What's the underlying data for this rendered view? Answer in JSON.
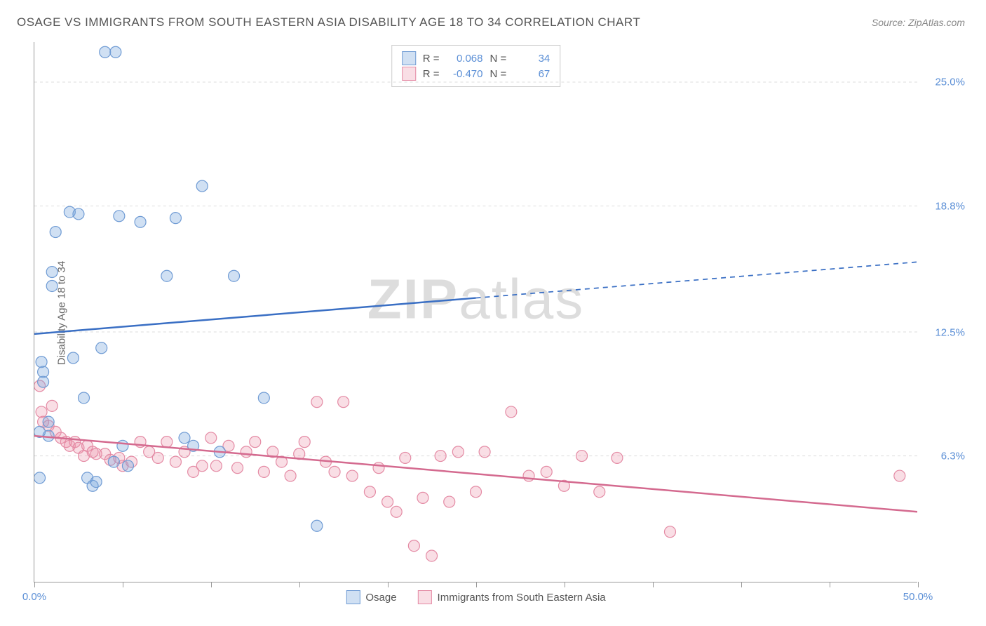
{
  "title": "OSAGE VS IMMIGRANTS FROM SOUTH EASTERN ASIA DISABILITY AGE 18 TO 34 CORRELATION CHART",
  "source": "Source: ZipAtlas.com",
  "watermark": "ZIPatlas",
  "ylabel": "Disability Age 18 to 34",
  "chart": {
    "type": "scatter",
    "xlim": [
      0,
      50
    ],
    "ylim": [
      0,
      27
    ],
    "background_color": "#ffffff",
    "grid_color": "#dddddd",
    "axis_color": "#999999",
    "yticks": [
      {
        "value": 6.3,
        "label": "6.3%"
      },
      {
        "value": 12.5,
        "label": "12.5%"
      },
      {
        "value": 18.8,
        "label": "18.8%"
      },
      {
        "value": 25.0,
        "label": "25.0%"
      }
    ],
    "xticks": [
      0,
      5,
      10,
      15,
      20,
      25,
      30,
      35,
      40,
      45,
      50
    ],
    "xlabels": [
      {
        "value": 0,
        "label": "0.0%"
      },
      {
        "value": 50,
        "label": "50.0%"
      }
    ],
    "tick_label_color": "#5b8fd6",
    "label_fontsize": 15,
    "title_fontsize": 17,
    "marker_radius": 8,
    "marker_stroke_width": 1.2,
    "line_width": 2.5
  },
  "series": {
    "osage": {
      "label": "Osage",
      "fill_color": "rgba(120, 165, 220, 0.35)",
      "stroke_color": "#6f9bd4",
      "line_color": "#3a6fc4",
      "R": "0.068",
      "N": "34",
      "trend": {
        "x1": 0,
        "y1": 12.4,
        "x2": 50,
        "y2": 16.0,
        "solid_until_x": 25
      },
      "points": [
        [
          0.4,
          11.0
        ],
        [
          0.5,
          10.5
        ],
        [
          0.5,
          10.0
        ],
        [
          0.8,
          8.0
        ],
        [
          0.8,
          7.3
        ],
        [
          1.0,
          15.5
        ],
        [
          1.0,
          14.8
        ],
        [
          1.2,
          17.5
        ],
        [
          2.0,
          18.5
        ],
        [
          2.2,
          11.2
        ],
        [
          2.5,
          18.4
        ],
        [
          2.8,
          9.2
        ],
        [
          3.0,
          5.2
        ],
        [
          3.3,
          4.8
        ],
        [
          3.5,
          5.0
        ],
        [
          3.8,
          11.7
        ],
        [
          4.0,
          26.5
        ],
        [
          4.6,
          26.5
        ],
        [
          4.5,
          6.0
        ],
        [
          4.8,
          18.3
        ],
        [
          5.0,
          6.8
        ],
        [
          5.3,
          5.8
        ],
        [
          6.0,
          18.0
        ],
        [
          7.5,
          15.3
        ],
        [
          8.0,
          18.2
        ],
        [
          8.5,
          7.2
        ],
        [
          9.0,
          6.8
        ],
        [
          9.5,
          19.8
        ],
        [
          10.5,
          6.5
        ],
        [
          11.3,
          15.3
        ],
        [
          13.0,
          9.2
        ],
        [
          16.0,
          2.8
        ],
        [
          0.3,
          7.5
        ],
        [
          0.3,
          5.2
        ]
      ]
    },
    "immigrants": {
      "label": "Immigrants from South Eastern Asia",
      "fill_color": "rgba(235, 145, 170, 0.3)",
      "stroke_color": "#e48aa4",
      "line_color": "#d46a8f",
      "R": "-0.470",
      "N": "67",
      "trend": {
        "x1": 0,
        "y1": 7.3,
        "x2": 50,
        "y2": 3.5,
        "solid_until_x": 50
      },
      "points": [
        [
          0.3,
          9.8
        ],
        [
          0.4,
          8.5
        ],
        [
          0.5,
          8.0
        ],
        [
          0.8,
          7.8
        ],
        [
          1.0,
          8.8
        ],
        [
          1.2,
          7.5
        ],
        [
          1.5,
          7.2
        ],
        [
          1.8,
          7.0
        ],
        [
          2.0,
          6.8
        ],
        [
          2.3,
          7.0
        ],
        [
          2.5,
          6.7
        ],
        [
          2.8,
          6.3
        ],
        [
          3.0,
          6.8
        ],
        [
          3.3,
          6.5
        ],
        [
          3.5,
          6.4
        ],
        [
          4.0,
          6.4
        ],
        [
          4.3,
          6.1
        ],
        [
          4.8,
          6.2
        ],
        [
          5.0,
          5.8
        ],
        [
          5.5,
          6.0
        ],
        [
          6.0,
          7.0
        ],
        [
          6.5,
          6.5
        ],
        [
          7.0,
          6.2
        ],
        [
          7.5,
          7.0
        ],
        [
          8.0,
          6.0
        ],
        [
          8.5,
          6.5
        ],
        [
          9.0,
          5.5
        ],
        [
          9.5,
          5.8
        ],
        [
          10.0,
          7.2
        ],
        [
          10.3,
          5.8
        ],
        [
          11.0,
          6.8
        ],
        [
          11.5,
          5.7
        ],
        [
          12.0,
          6.5
        ],
        [
          12.5,
          7.0
        ],
        [
          13.0,
          5.5
        ],
        [
          13.5,
          6.5
        ],
        [
          14.0,
          6.0
        ],
        [
          14.5,
          5.3
        ],
        [
          15.0,
          6.4
        ],
        [
          15.3,
          7.0
        ],
        [
          16.0,
          9.0
        ],
        [
          16.5,
          6.0
        ],
        [
          17.0,
          5.5
        ],
        [
          17.5,
          9.0
        ],
        [
          18.0,
          5.3
        ],
        [
          19.0,
          4.5
        ],
        [
          19.5,
          5.7
        ],
        [
          20.0,
          4.0
        ],
        [
          20.5,
          3.5
        ],
        [
          21.0,
          6.2
        ],
        [
          21.5,
          1.8
        ],
        [
          22.0,
          4.2
        ],
        [
          22.5,
          1.3
        ],
        [
          23.0,
          6.3
        ],
        [
          23.5,
          4.0
        ],
        [
          24.0,
          6.5
        ],
        [
          25.0,
          4.5
        ],
        [
          25.5,
          6.5
        ],
        [
          27.0,
          8.5
        ],
        [
          28.0,
          5.3
        ],
        [
          29.0,
          5.5
        ],
        [
          30.0,
          4.8
        ],
        [
          31.0,
          6.3
        ],
        [
          32.0,
          4.5
        ],
        [
          33.0,
          6.2
        ],
        [
          36.0,
          2.5
        ],
        [
          49.0,
          5.3
        ]
      ]
    }
  },
  "stats_labels": {
    "R": "R =",
    "N": "N ="
  }
}
